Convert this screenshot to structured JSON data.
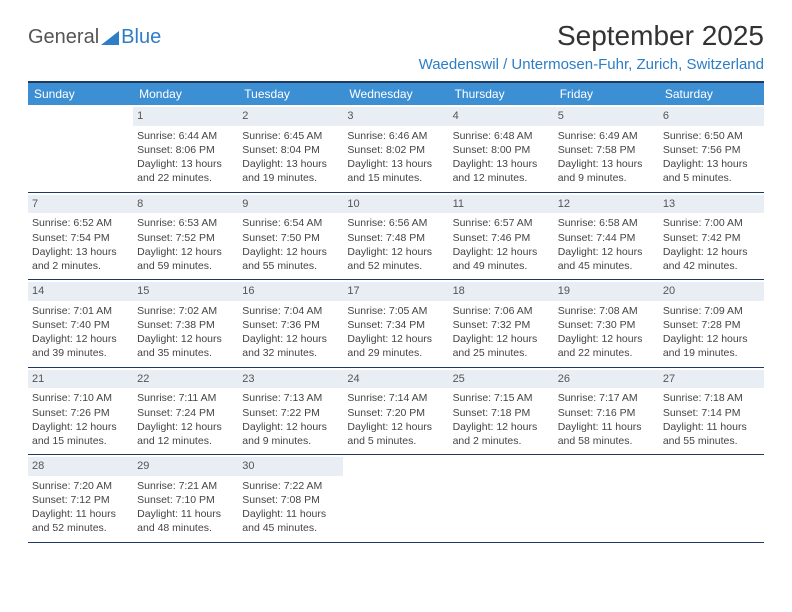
{
  "brand": {
    "part1": "General",
    "part2": "Blue"
  },
  "title": "September 2025",
  "location": "Waedenswil / Untermosen-Fuhr, Zurich, Switzerland",
  "colors": {
    "header_bg": "#3d8fd4",
    "header_border": "#1f3a5f",
    "daynum_bg": "#e8eef4",
    "brand_blue": "#2d7dc7",
    "text": "#444444",
    "background": "#ffffff"
  },
  "day_names": [
    "Sunday",
    "Monday",
    "Tuesday",
    "Wednesday",
    "Thursday",
    "Friday",
    "Saturday"
  ],
  "weeks": [
    [
      {
        "n": "",
        "sunrise": "",
        "sunset": "",
        "daylight": ""
      },
      {
        "n": "1",
        "sunrise": "6:44 AM",
        "sunset": "8:06 PM",
        "daylight": "13 hours and 22 minutes."
      },
      {
        "n": "2",
        "sunrise": "6:45 AM",
        "sunset": "8:04 PM",
        "daylight": "13 hours and 19 minutes."
      },
      {
        "n": "3",
        "sunrise": "6:46 AM",
        "sunset": "8:02 PM",
        "daylight": "13 hours and 15 minutes."
      },
      {
        "n": "4",
        "sunrise": "6:48 AM",
        "sunset": "8:00 PM",
        "daylight": "13 hours and 12 minutes."
      },
      {
        "n": "5",
        "sunrise": "6:49 AM",
        "sunset": "7:58 PM",
        "daylight": "13 hours and 9 minutes."
      },
      {
        "n": "6",
        "sunrise": "6:50 AM",
        "sunset": "7:56 PM",
        "daylight": "13 hours and 5 minutes."
      }
    ],
    [
      {
        "n": "7",
        "sunrise": "6:52 AM",
        "sunset": "7:54 PM",
        "daylight": "13 hours and 2 minutes."
      },
      {
        "n": "8",
        "sunrise": "6:53 AM",
        "sunset": "7:52 PM",
        "daylight": "12 hours and 59 minutes."
      },
      {
        "n": "9",
        "sunrise": "6:54 AM",
        "sunset": "7:50 PM",
        "daylight": "12 hours and 55 minutes."
      },
      {
        "n": "10",
        "sunrise": "6:56 AM",
        "sunset": "7:48 PM",
        "daylight": "12 hours and 52 minutes."
      },
      {
        "n": "11",
        "sunrise": "6:57 AM",
        "sunset": "7:46 PM",
        "daylight": "12 hours and 49 minutes."
      },
      {
        "n": "12",
        "sunrise": "6:58 AM",
        "sunset": "7:44 PM",
        "daylight": "12 hours and 45 minutes."
      },
      {
        "n": "13",
        "sunrise": "7:00 AM",
        "sunset": "7:42 PM",
        "daylight": "12 hours and 42 minutes."
      }
    ],
    [
      {
        "n": "14",
        "sunrise": "7:01 AM",
        "sunset": "7:40 PM",
        "daylight": "12 hours and 39 minutes."
      },
      {
        "n": "15",
        "sunrise": "7:02 AM",
        "sunset": "7:38 PM",
        "daylight": "12 hours and 35 minutes."
      },
      {
        "n": "16",
        "sunrise": "7:04 AM",
        "sunset": "7:36 PM",
        "daylight": "12 hours and 32 minutes."
      },
      {
        "n": "17",
        "sunrise": "7:05 AM",
        "sunset": "7:34 PM",
        "daylight": "12 hours and 29 minutes."
      },
      {
        "n": "18",
        "sunrise": "7:06 AM",
        "sunset": "7:32 PM",
        "daylight": "12 hours and 25 minutes."
      },
      {
        "n": "19",
        "sunrise": "7:08 AM",
        "sunset": "7:30 PM",
        "daylight": "12 hours and 22 minutes."
      },
      {
        "n": "20",
        "sunrise": "7:09 AM",
        "sunset": "7:28 PM",
        "daylight": "12 hours and 19 minutes."
      }
    ],
    [
      {
        "n": "21",
        "sunrise": "7:10 AM",
        "sunset": "7:26 PM",
        "daylight": "12 hours and 15 minutes."
      },
      {
        "n": "22",
        "sunrise": "7:11 AM",
        "sunset": "7:24 PM",
        "daylight": "12 hours and 12 minutes."
      },
      {
        "n": "23",
        "sunrise": "7:13 AM",
        "sunset": "7:22 PM",
        "daylight": "12 hours and 9 minutes."
      },
      {
        "n": "24",
        "sunrise": "7:14 AM",
        "sunset": "7:20 PM",
        "daylight": "12 hours and 5 minutes."
      },
      {
        "n": "25",
        "sunrise": "7:15 AM",
        "sunset": "7:18 PM",
        "daylight": "12 hours and 2 minutes."
      },
      {
        "n": "26",
        "sunrise": "7:17 AM",
        "sunset": "7:16 PM",
        "daylight": "11 hours and 58 minutes."
      },
      {
        "n": "27",
        "sunrise": "7:18 AM",
        "sunset": "7:14 PM",
        "daylight": "11 hours and 55 minutes."
      }
    ],
    [
      {
        "n": "28",
        "sunrise": "7:20 AM",
        "sunset": "7:12 PM",
        "daylight": "11 hours and 52 minutes."
      },
      {
        "n": "29",
        "sunrise": "7:21 AM",
        "sunset": "7:10 PM",
        "daylight": "11 hours and 48 minutes."
      },
      {
        "n": "30",
        "sunrise": "7:22 AM",
        "sunset": "7:08 PM",
        "daylight": "11 hours and 45 minutes."
      },
      {
        "n": "",
        "sunrise": "",
        "sunset": "",
        "daylight": ""
      },
      {
        "n": "",
        "sunrise": "",
        "sunset": "",
        "daylight": ""
      },
      {
        "n": "",
        "sunrise": "",
        "sunset": "",
        "daylight": ""
      },
      {
        "n": "",
        "sunrise": "",
        "sunset": "",
        "daylight": ""
      }
    ]
  ]
}
